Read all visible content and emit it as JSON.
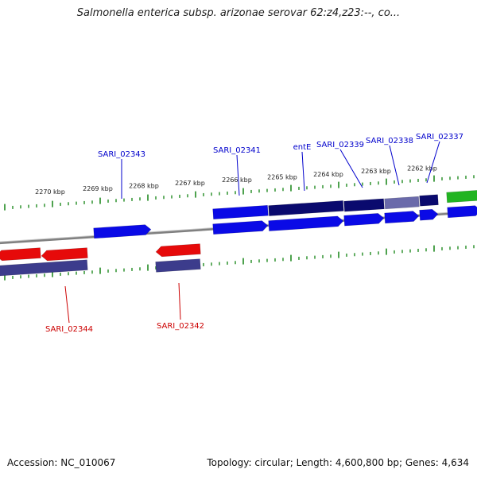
{
  "title": "Salmonella enterica subsp. arizonae serovar 62:z4,z23:--, co...",
  "footer": {
    "accession": "Accession: NC_010067",
    "summary": "Topology: circular; Length: 4,600,800 bp; Genes: 4,634"
  },
  "colors": {
    "forward_cds": "#0a0ae6",
    "forward_cds_dark": "#0a0a6e",
    "reverse_cds": "#e60a0a",
    "reverse_gene": "#3c3c8c",
    "other_feature": "#22b422",
    "tick": "#228b22",
    "backbone": "#808080",
    "label_forward": "#0000cc",
    "label_reverse": "#cc0000"
  },
  "scale": {
    "unit": "kbp",
    "ticks": [
      {
        "kbp": 2270,
        "label": "2270 kbp"
      },
      {
        "kbp": 2269,
        "label": "2269 kbp"
      },
      {
        "kbp": 2268,
        "label": "2268 kbp"
      },
      {
        "kbp": 2267,
        "label": "2267 kbp"
      },
      {
        "kbp": 2266,
        "label": "2266 kbp"
      },
      {
        "kbp": 2265,
        "label": "2265 kbp"
      },
      {
        "kbp": 2264,
        "label": "2264 kbp"
      },
      {
        "kbp": 2263,
        "label": "2263 kbp"
      },
      {
        "kbp": 2262,
        "label": "2262 kbp"
      }
    ]
  },
  "gene_labels": {
    "forward": [
      "SARI_02343",
      "SARI_02341",
      "entE",
      "SARI_02339",
      "SARI_02338",
      "SARI_02337"
    ],
    "reverse": [
      "SARI_02344",
      "SARI_02342"
    ]
  }
}
